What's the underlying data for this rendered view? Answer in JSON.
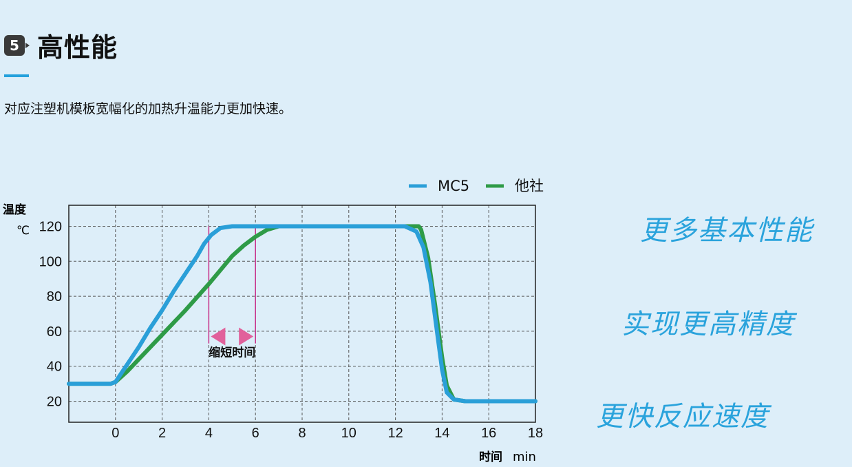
{
  "header": {
    "number": "5",
    "title": "高性能"
  },
  "subtitle": "对应注塑机模板宽幅化的加热升温能力更加快速。",
  "features": [
    "更多基本性能",
    "实现更高精度",
    "更快反应速度"
  ],
  "colors": {
    "mc5": "#2a9fd8",
    "other": "#2e9b47",
    "accent": "#23a0dc",
    "annotation": "#c8308a",
    "background": "#ddeef9"
  },
  "chart_data": {
    "type": "line",
    "ylabel": "温度",
    "yunit": "℃",
    "xlabel": "时间",
    "xunit": "min",
    "xlim": [
      -2,
      18
    ],
    "ylim": [
      8,
      132
    ],
    "xticks": [
      0,
      2,
      4,
      6,
      8,
      10,
      12,
      14,
      16,
      18
    ],
    "yticks": [
      20,
      40,
      60,
      80,
      100,
      120
    ],
    "grid": true,
    "legend_position": "top-right",
    "series": [
      {
        "name": "MC5",
        "color": "#2a9fd8",
        "points": [
          [
            -2,
            30
          ],
          [
            -0.2,
            30
          ],
          [
            0,
            31
          ],
          [
            0.5,
            41
          ],
          [
            1,
            51
          ],
          [
            1.5,
            62
          ],
          [
            2,
            72
          ],
          [
            2.5,
            83
          ],
          [
            3,
            93
          ],
          [
            3.5,
            103
          ],
          [
            3.8,
            110
          ],
          [
            4.1,
            115
          ],
          [
            4.5,
            119
          ],
          [
            5,
            120
          ],
          [
            12.4,
            120
          ],
          [
            12.9,
            117
          ],
          [
            13.2,
            108
          ],
          [
            13.5,
            88
          ],
          [
            13.8,
            58
          ],
          [
            14,
            38
          ],
          [
            14.2,
            25
          ],
          [
            14.5,
            21
          ],
          [
            15,
            20
          ],
          [
            18,
            20
          ]
        ]
      },
      {
        "name": "他社",
        "color": "#2e9b47",
        "points": [
          [
            -2,
            30
          ],
          [
            -0.2,
            30
          ],
          [
            0,
            31
          ],
          [
            0.5,
            37
          ],
          [
            1,
            44
          ],
          [
            2,
            58
          ],
          [
            3,
            72
          ],
          [
            4,
            87
          ],
          [
            4.5,
            95
          ],
          [
            5,
            103
          ],
          [
            5.5,
            109
          ],
          [
            6,
            114
          ],
          [
            6.5,
            118
          ],
          [
            7,
            120
          ],
          [
            13,
            120
          ],
          [
            13.1,
            118
          ],
          [
            13.4,
            102
          ],
          [
            13.7,
            75
          ],
          [
            14,
            45
          ],
          [
            14.2,
            29
          ],
          [
            14.5,
            21
          ],
          [
            15,
            20
          ],
          [
            18,
            20
          ]
        ]
      }
    ],
    "annotation": {
      "label": "缩短时间",
      "from_x": 4,
      "to_x": 6
    }
  }
}
